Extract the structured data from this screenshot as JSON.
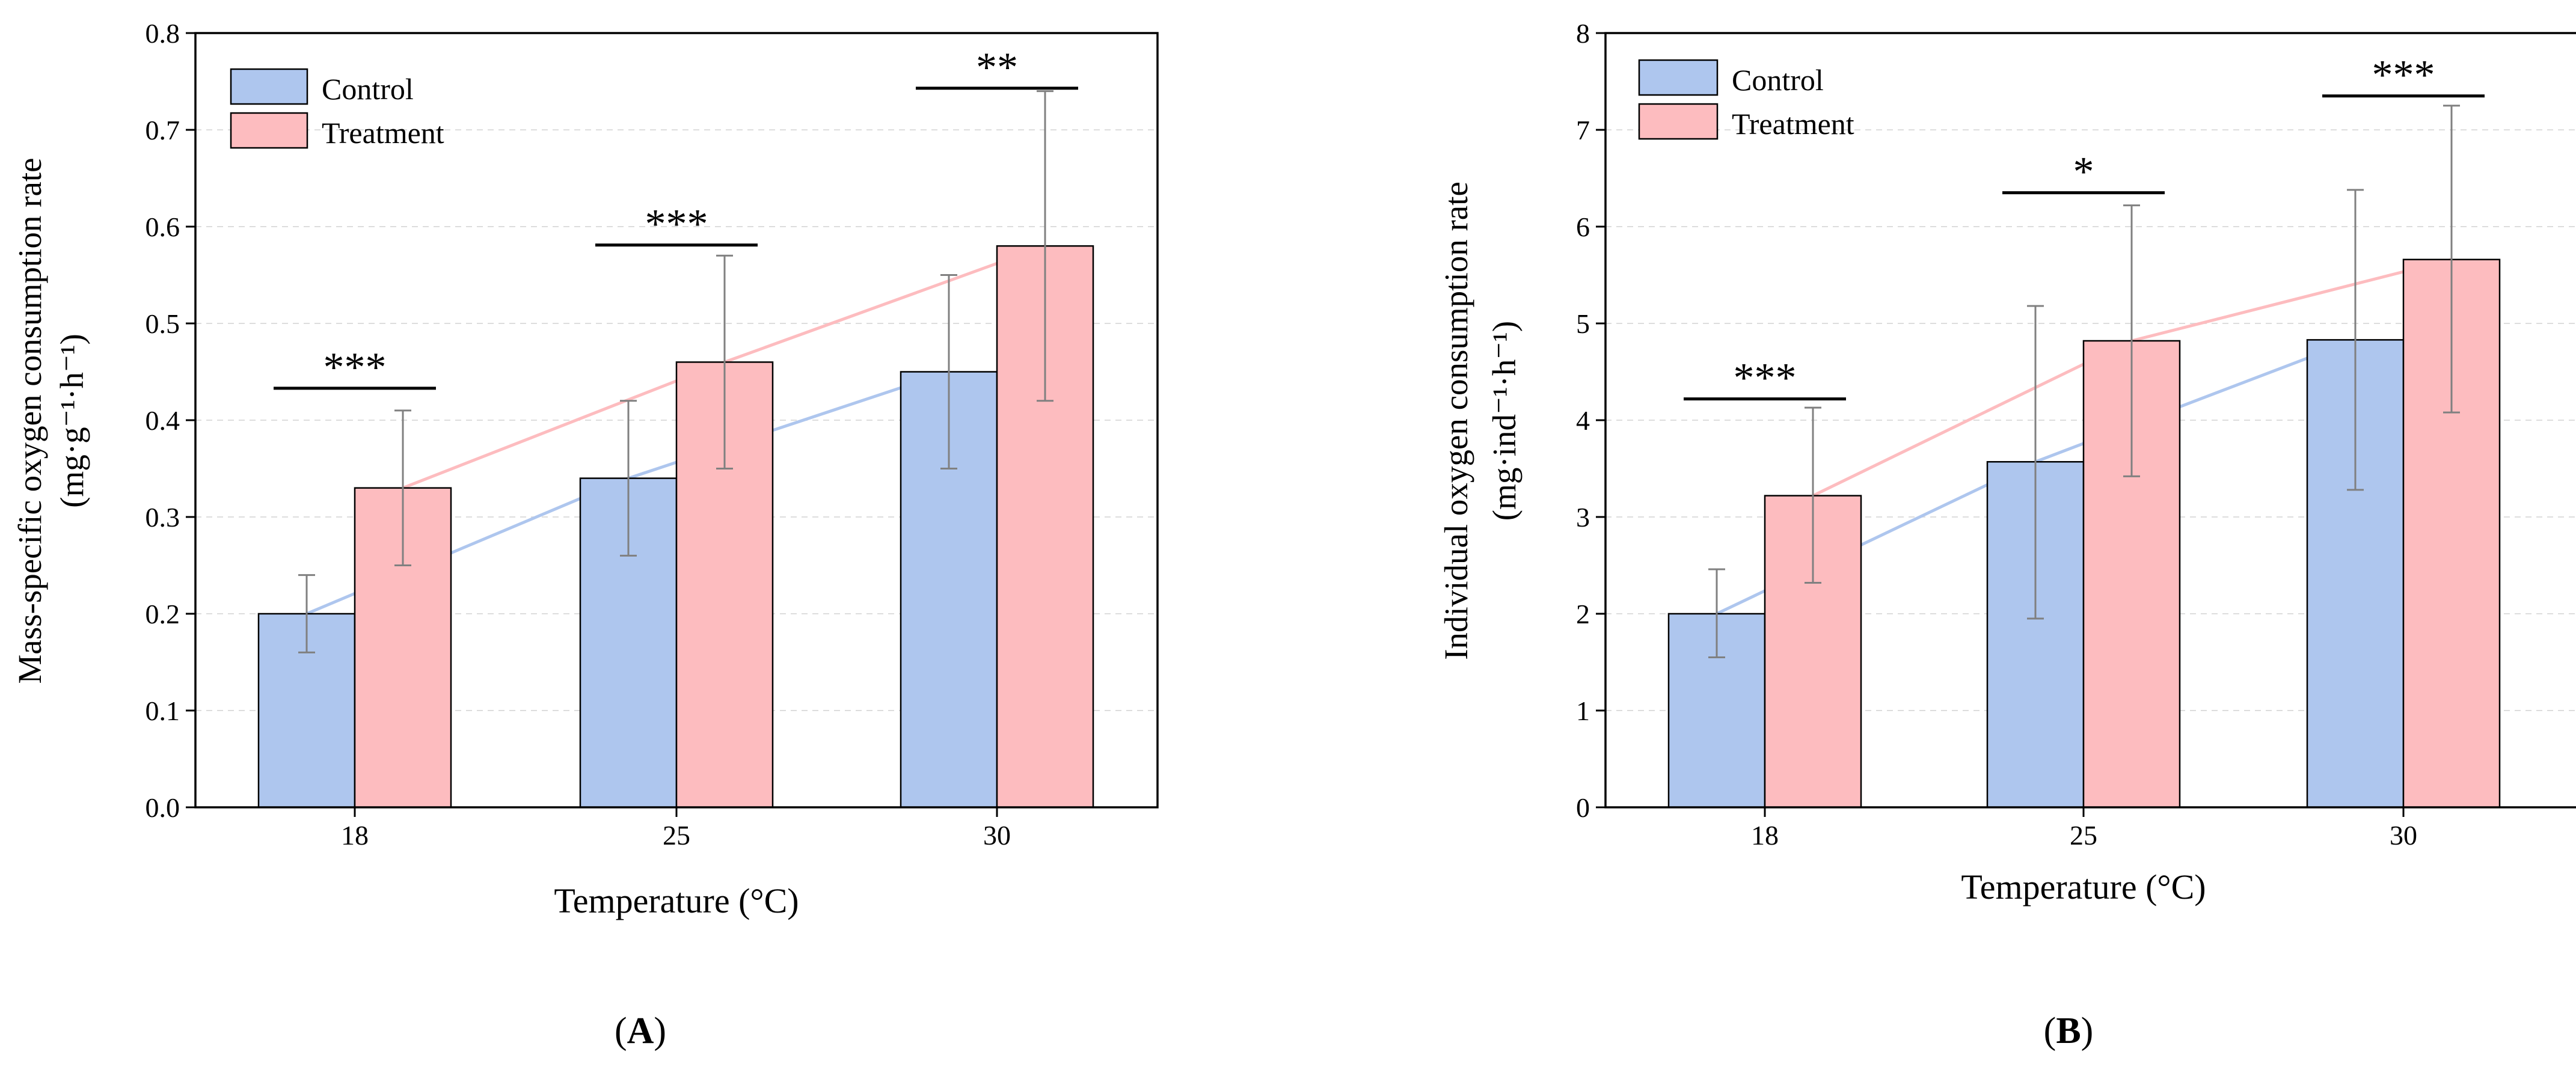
{
  "colors": {
    "control_fill": "#aec6ee",
    "treatment_fill": "#fdbcbf",
    "control_line": "#aec6ee",
    "treatment_line": "#fdbcbf",
    "error_bar": "#808080",
    "grid": "#dddddd",
    "axis": "#000000"
  },
  "chart_data": [
    {
      "panel": "(A)",
      "panel_letter": "A",
      "type": "bar",
      "xlabel": "Temperature (°C)",
      "ylabel": "Mass-specific oxygen consumption rate",
      "ylabel_unit": "(mg·g⁻¹·h⁻¹)",
      "categories": [
        "18",
        "25",
        "30"
      ],
      "ylim": [
        0,
        0.8
      ],
      "yticks": [
        "0.0",
        "0.1",
        "0.2",
        "0.3",
        "0.4",
        "0.5",
        "0.6",
        "0.7",
        "0.8"
      ],
      "grid": "horizontal dashed",
      "legend_position": "top-left",
      "series": [
        {
          "name": "Control",
          "values": [
            0.2,
            0.34,
            0.45
          ],
          "err_low": [
            0.16,
            0.26,
            0.35
          ],
          "err_high": [
            0.24,
            0.42,
            0.55
          ]
        },
        {
          "name": "Treatment",
          "values": [
            0.33,
            0.46,
            0.58
          ],
          "err_low": [
            0.25,
            0.35,
            0.42
          ],
          "err_high": [
            0.41,
            0.57,
            0.74
          ]
        }
      ],
      "significance": [
        "***",
        "***",
        "**"
      ],
      "significance_y": [
        0.433,
        0.581,
        0.743
      ]
    },
    {
      "panel": "(B)",
      "panel_letter": "B",
      "type": "bar",
      "xlabel": "Temperature (°C)",
      "ylabel": "Individual oxygen consumption rate",
      "ylabel_unit": "(mg·ind⁻¹·h⁻¹)",
      "categories": [
        "18",
        "25",
        "30"
      ],
      "ylim": [
        0,
        8
      ],
      "yticks": [
        "0",
        "1",
        "2",
        "3",
        "4",
        "5",
        "6",
        "7",
        "8"
      ],
      "grid": "horizontal dashed",
      "legend_position": "top-left",
      "series": [
        {
          "name": "Control",
          "values": [
            2.0,
            3.57,
            4.83
          ],
          "err_low": [
            1.55,
            1.95,
            3.28
          ],
          "err_high": [
            2.46,
            5.18,
            6.38
          ]
        },
        {
          "name": "Treatment",
          "values": [
            3.22,
            4.82,
            5.66
          ],
          "err_low": [
            2.32,
            3.42,
            4.08
          ],
          "err_high": [
            4.13,
            6.22,
            7.25
          ]
        }
      ],
      "significance": [
        "***",
        "*",
        "***"
      ],
      "significance_y": [
        4.22,
        6.35,
        7.35
      ]
    }
  ]
}
